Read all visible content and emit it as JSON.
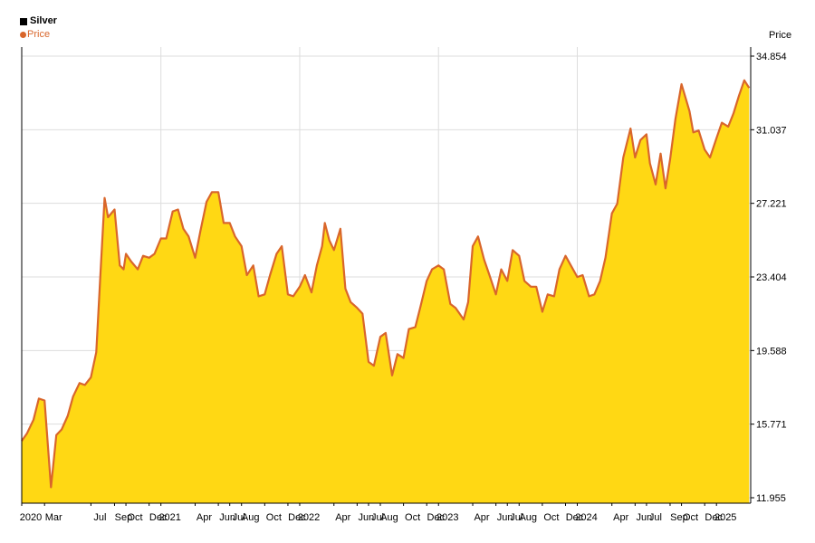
{
  "legend": {
    "series_title": "Silver",
    "price_label": "Price"
  },
  "chart_data": {
    "type": "area",
    "title": "Silver",
    "ylabel": "Price",
    "series": [
      {
        "name": "Price",
        "color": "#D9662B",
        "fill": "#FFD814"
      }
    ],
    "y_ticks": [
      "34.854",
      "31.037",
      "27.221",
      "23.404",
      "19.588",
      "15.771",
      "11.955"
    ],
    "ylim": [
      11.955,
      34.854
    ],
    "x_tick_labels": [
      "2020",
      "Mar",
      "Jul",
      "Sep",
      "Oct",
      "Dec",
      "2021",
      "Apr",
      "Jun",
      "Jul",
      "Aug",
      "Oct",
      "Dec",
      "2022",
      "Apr",
      "Jun",
      "Jul",
      "Aug",
      "Oct",
      "Dec",
      "2023",
      "Apr",
      "Jun",
      "Jul",
      "Aug",
      "Oct",
      "Dec",
      "2024",
      "Apr",
      "Jun",
      "Jul",
      "Sep",
      "Oct",
      "Dec",
      "2025"
    ],
    "x_tick_dates": [
      "2020-01-01",
      "2020-03-01",
      "2020-07-01",
      "2020-09-01",
      "2020-10-01",
      "2020-12-01",
      "2021-01-01",
      "2021-04-01",
      "2021-06-01",
      "2021-07-01",
      "2021-08-01",
      "2021-10-01",
      "2021-12-01",
      "2022-01-01",
      "2022-04-01",
      "2022-06-01",
      "2022-07-01",
      "2022-08-01",
      "2022-10-01",
      "2022-12-01",
      "2023-01-01",
      "2023-04-01",
      "2023-06-01",
      "2023-07-01",
      "2023-08-01",
      "2023-10-01",
      "2023-12-01",
      "2024-01-01",
      "2024-04-01",
      "2024-06-01",
      "2024-07-01",
      "2024-09-01",
      "2024-10-01",
      "2024-12-01",
      "2025-01-01"
    ],
    "xlim": [
      "2020-01-01",
      "2025-04-01"
    ],
    "vertical_gridlines_at": [
      "2021-01-01",
      "2022-01-01",
      "2023-01-01",
      "2024-01-01"
    ],
    "x": [
      "2020-01-01",
      "2020-01-15",
      "2020-02-01",
      "2020-02-15",
      "2020-03-01",
      "2020-03-18",
      "2020-04-01",
      "2020-04-15",
      "2020-05-01",
      "2020-05-15",
      "2020-06-01",
      "2020-06-15",
      "2020-07-01",
      "2020-07-15",
      "2020-07-25",
      "2020-08-06",
      "2020-08-15",
      "2020-09-01",
      "2020-09-15",
      "2020-09-25",
      "2020-10-01",
      "2020-10-15",
      "2020-11-01",
      "2020-11-15",
      "2020-12-01",
      "2020-12-15",
      "2021-01-01",
      "2021-01-15",
      "2021-02-01",
      "2021-02-15",
      "2021-03-01",
      "2021-03-15",
      "2021-04-01",
      "2021-04-15",
      "2021-05-01",
      "2021-05-15",
      "2021-06-01",
      "2021-06-15",
      "2021-07-01",
      "2021-07-15",
      "2021-08-01",
      "2021-08-15",
      "2021-09-01",
      "2021-09-15",
      "2021-10-01",
      "2021-10-15",
      "2021-11-01",
      "2021-11-15",
      "2021-12-01",
      "2021-12-15",
      "2022-01-01",
      "2022-01-15",
      "2022-02-01",
      "2022-02-15",
      "2022-03-01",
      "2022-03-08",
      "2022-03-20",
      "2022-04-01",
      "2022-04-18",
      "2022-05-01",
      "2022-05-15",
      "2022-06-01",
      "2022-06-15",
      "2022-07-01",
      "2022-07-15",
      "2022-08-01",
      "2022-08-15",
      "2022-09-01",
      "2022-09-15",
      "2022-10-01",
      "2022-10-15",
      "2022-11-01",
      "2022-11-15",
      "2022-12-01",
      "2022-12-15",
      "2023-01-01",
      "2023-01-15",
      "2023-02-01",
      "2023-02-15",
      "2023-03-08",
      "2023-03-20",
      "2023-04-01",
      "2023-04-15",
      "2023-05-01",
      "2023-05-15",
      "2023-06-01",
      "2023-06-15",
      "2023-07-01",
      "2023-07-15",
      "2023-08-01",
      "2023-08-15",
      "2023-09-01",
      "2023-09-15",
      "2023-10-01",
      "2023-10-15",
      "2023-11-01",
      "2023-11-15",
      "2023-12-01",
      "2023-12-15",
      "2024-01-01",
      "2024-01-15",
      "2024-02-01",
      "2024-02-15",
      "2024-03-01",
      "2024-03-15",
      "2024-04-01",
      "2024-04-15",
      "2024-05-01",
      "2024-05-20",
      "2024-06-01",
      "2024-06-15",
      "2024-07-01",
      "2024-07-10",
      "2024-07-25",
      "2024-08-07",
      "2024-08-20",
      "2024-09-01",
      "2024-09-15",
      "2024-10-01",
      "2024-10-22",
      "2024-11-01",
      "2024-11-15",
      "2024-12-01",
      "2024-12-15",
      "2025-01-01",
      "2025-01-15",
      "2025-02-01",
      "2025-02-15",
      "2025-03-01",
      "2025-03-15",
      "2025-03-28"
    ],
    "y": [
      14.9,
      15.3,
      16.0,
      17.1,
      17.0,
      12.5,
      15.2,
      15.5,
      16.2,
      17.2,
      17.9,
      17.8,
      18.2,
      19.5,
      23.2,
      27.5,
      26.5,
      26.9,
      24.0,
      23.8,
      24.6,
      24.2,
      23.8,
      24.5,
      24.4,
      24.6,
      25.4,
      25.4,
      26.8,
      26.9,
      25.9,
      25.5,
      24.4,
      25.8,
      27.3,
      27.8,
      27.8,
      26.2,
      26.2,
      25.5,
      25.0,
      23.5,
      24.0,
      22.4,
      22.5,
      23.5,
      24.6,
      25.0,
      22.5,
      22.4,
      22.9,
      23.5,
      22.6,
      24.0,
      25.0,
      26.2,
      25.3,
      24.8,
      25.9,
      22.8,
      22.1,
      21.8,
      21.5,
      19.0,
      18.8,
      20.3,
      20.5,
      18.3,
      19.4,
      19.2,
      20.7,
      20.8,
      21.9,
      23.2,
      23.8,
      24.0,
      23.8,
      22.0,
      21.8,
      21.2,
      22.1,
      25.0,
      25.5,
      24.3,
      23.5,
      22.5,
      23.8,
      23.2,
      24.8,
      24.5,
      23.2,
      22.9,
      22.9,
      21.6,
      22.5,
      22.4,
      23.8,
      24.5,
      24.0,
      23.4,
      23.5,
      22.4,
      22.5,
      23.2,
      24.4,
      26.7,
      27.2,
      29.6,
      31.1,
      29.6,
      30.5,
      30.8,
      29.3,
      28.2,
      29.8,
      28.0,
      29.5,
      31.6,
      33.4,
      32.0,
      30.9,
      31.0,
      30.0,
      29.6,
      30.6,
      31.4,
      31.2,
      31.9,
      32.8,
      33.6,
      33.2
    ]
  }
}
